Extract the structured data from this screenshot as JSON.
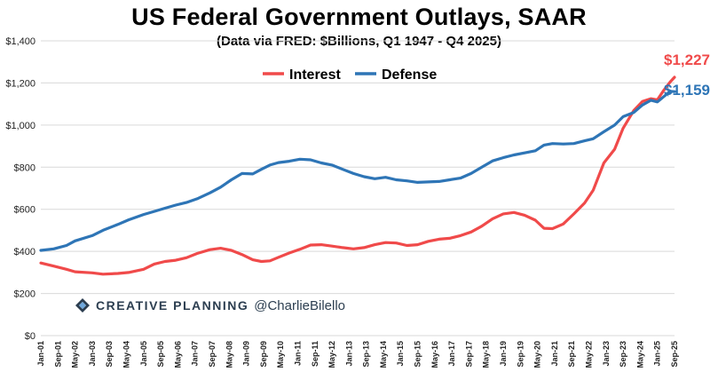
{
  "chart_data": {
    "type": "line",
    "title": "US Federal Government Outlays, SAAR",
    "subtitle": "(Data via FRED: $Billions, Q1 1947 - Q4 2025)",
    "ylim": [
      0,
      1400
    ],
    "y_ticks": [
      0,
      200,
      400,
      600,
      800,
      1000,
      1200,
      1400
    ],
    "y_tick_labels": [
      "$0",
      "$200",
      "$400",
      "$600",
      "$800",
      "$1,000",
      "$1,200",
      "$1,400"
    ],
    "grid": true,
    "legend": "top-center",
    "x_tick_labels": [
      "Jan-01",
      "Sep-01",
      "May-02",
      "Jan-03",
      "Sep-03",
      "May-04",
      "Jan-05",
      "Sep-05",
      "May-06",
      "Jan-07",
      "Sep-07",
      "May-08",
      "Jan-09",
      "Sep-09",
      "May-10",
      "Jan-11",
      "Sep-11",
      "May-12",
      "Jan-13",
      "Sep-13",
      "May-14",
      "Jan-15",
      "Sep-15",
      "May-16",
      "Jan-17",
      "Sep-17",
      "May-18",
      "Jan-19",
      "Sep-19",
      "May-20",
      "Jan-21",
      "Sep-21",
      "May-22",
      "Jan-23",
      "Sep-23",
      "May-24",
      "Jan-25",
      "Sep-25"
    ],
    "x_start": "2001-01",
    "x_end": "2025-09",
    "series": [
      {
        "name": "Interest",
        "color": "#f04a4a",
        "end_label": "$1,227",
        "points": [
          [
            "2001-01",
            345
          ],
          [
            "2001-07",
            330
          ],
          [
            "2002-01",
            315
          ],
          [
            "2002-05",
            303
          ],
          [
            "2003-01",
            298
          ],
          [
            "2003-06",
            292
          ],
          [
            "2004-01",
            295
          ],
          [
            "2004-06",
            300
          ],
          [
            "2005-01",
            315
          ],
          [
            "2005-06",
            340
          ],
          [
            "2005-11",
            352
          ],
          [
            "2006-04",
            358
          ],
          [
            "2006-09",
            370
          ],
          [
            "2007-02",
            390
          ],
          [
            "2007-08",
            408
          ],
          [
            "2008-01",
            415
          ],
          [
            "2008-06",
            405
          ],
          [
            "2008-11",
            385
          ],
          [
            "2009-04",
            360
          ],
          [
            "2009-08",
            352
          ],
          [
            "2009-12",
            355
          ],
          [
            "2010-04",
            372
          ],
          [
            "2010-09",
            392
          ],
          [
            "2011-02",
            410
          ],
          [
            "2011-07",
            430
          ],
          [
            "2011-12",
            432
          ],
          [
            "2012-05",
            425
          ],
          [
            "2012-10",
            418
          ],
          [
            "2013-03",
            412
          ],
          [
            "2013-08",
            418
          ],
          [
            "2014-01",
            432
          ],
          [
            "2014-06",
            442
          ],
          [
            "2014-11",
            440
          ],
          [
            "2015-04",
            428
          ],
          [
            "2015-09",
            432
          ],
          [
            "2016-02",
            448
          ],
          [
            "2016-07",
            458
          ],
          [
            "2016-12",
            462
          ],
          [
            "2017-05",
            475
          ],
          [
            "2017-10",
            492
          ],
          [
            "2018-03",
            520
          ],
          [
            "2018-08",
            555
          ],
          [
            "2019-01",
            578
          ],
          [
            "2019-06",
            585
          ],
          [
            "2019-11",
            572
          ],
          [
            "2020-04",
            548
          ],
          [
            "2020-08",
            510
          ],
          [
            "2020-12",
            508
          ],
          [
            "2021-05",
            530
          ],
          [
            "2021-10",
            578
          ],
          [
            "2022-03",
            630
          ],
          [
            "2022-07",
            690
          ],
          [
            "2022-12",
            820
          ],
          [
            "2023-05",
            885
          ],
          [
            "2023-09",
            985
          ],
          [
            "2024-02",
            1070
          ],
          [
            "2024-06",
            1112
          ],
          [
            "2024-10",
            1125
          ],
          [
            "2025-01",
            1120
          ],
          [
            "2025-04",
            1165
          ],
          [
            "2025-07",
            1205
          ],
          [
            "2025-09",
            1227
          ]
        ]
      },
      {
        "name": "Defense",
        "color": "#2e75b6",
        "end_label": "$1,159",
        "points": [
          [
            "2001-01",
            405
          ],
          [
            "2001-07",
            412
          ],
          [
            "2002-01",
            428
          ],
          [
            "2002-05",
            450
          ],
          [
            "2003-01",
            475
          ],
          [
            "2003-06",
            500
          ],
          [
            "2004-01",
            528
          ],
          [
            "2004-06",
            550
          ],
          [
            "2005-01",
            575
          ],
          [
            "2005-06",
            590
          ],
          [
            "2005-11",
            605
          ],
          [
            "2006-04",
            620
          ],
          [
            "2006-09",
            632
          ],
          [
            "2007-02",
            650
          ],
          [
            "2007-08",
            678
          ],
          [
            "2008-01",
            705
          ],
          [
            "2008-06",
            740
          ],
          [
            "2008-11",
            770
          ],
          [
            "2009-04",
            768
          ],
          [
            "2009-08",
            790
          ],
          [
            "2009-12",
            810
          ],
          [
            "2010-04",
            822
          ],
          [
            "2010-09",
            828
          ],
          [
            "2011-02",
            838
          ],
          [
            "2011-07",
            835
          ],
          [
            "2011-12",
            820
          ],
          [
            "2012-05",
            810
          ],
          [
            "2012-10",
            790
          ],
          [
            "2013-03",
            770
          ],
          [
            "2013-08",
            755
          ],
          [
            "2014-01",
            745
          ],
          [
            "2014-06",
            752
          ],
          [
            "2014-11",
            740
          ],
          [
            "2015-04",
            735
          ],
          [
            "2015-09",
            728
          ],
          [
            "2016-02",
            730
          ],
          [
            "2016-07",
            732
          ],
          [
            "2016-12",
            740
          ],
          [
            "2017-05",
            748
          ],
          [
            "2017-10",
            770
          ],
          [
            "2018-03",
            800
          ],
          [
            "2018-08",
            830
          ],
          [
            "2019-01",
            845
          ],
          [
            "2019-06",
            858
          ],
          [
            "2019-11",
            868
          ],
          [
            "2020-04",
            878
          ],
          [
            "2020-08",
            905
          ],
          [
            "2020-12",
            912
          ],
          [
            "2021-05",
            910
          ],
          [
            "2021-10",
            912
          ],
          [
            "2022-03",
            925
          ],
          [
            "2022-07",
            935
          ],
          [
            "2022-12",
            968
          ],
          [
            "2023-05",
            1000
          ],
          [
            "2023-09",
            1040
          ],
          [
            "2024-02",
            1060
          ],
          [
            "2024-06",
            1095
          ],
          [
            "2024-10",
            1118
          ],
          [
            "2025-01",
            1110
          ],
          [
            "2025-04",
            1135
          ],
          [
            "2025-07",
            1160
          ],
          [
            "2025-09",
            1159
          ]
        ]
      }
    ]
  },
  "branding": {
    "logo_text": "CREATIVE PLANNING",
    "handle": "@CharlieBilello"
  }
}
